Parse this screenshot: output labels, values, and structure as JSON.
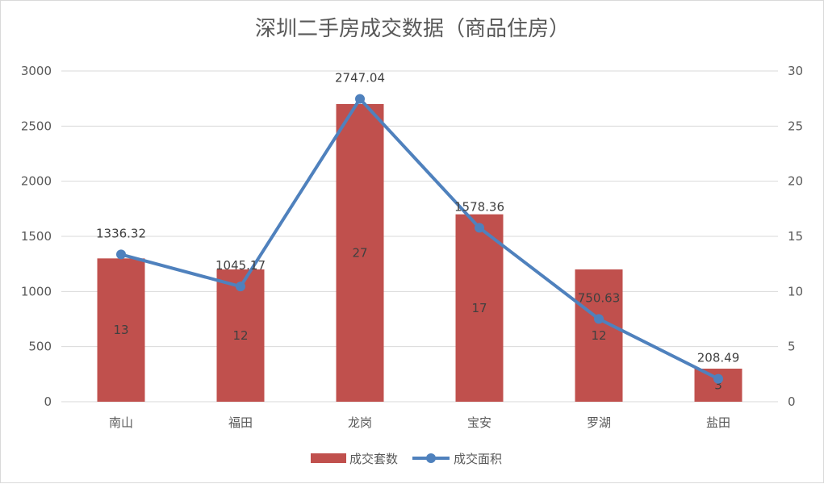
{
  "chart_data": {
    "type": "bar+line",
    "title": "深圳二手房成交数据（商品住房）",
    "categories": [
      "南山",
      "福田",
      "龙岗",
      "宝安",
      "罗湖",
      "盐田"
    ],
    "series": [
      {
        "name": "成交套数",
        "type": "bar",
        "axis": "left",
        "color": "#C0504D",
        "values": [
          1300,
          1200,
          2700,
          1700,
          1200,
          300
        ],
        "data_labels": [
          "13",
          "12",
          "27",
          "17",
          "12",
          "3"
        ]
      },
      {
        "name": "成交面积",
        "type": "line",
        "axis": "right",
        "color": "#4F81BD",
        "values": [
          13.36,
          10.45,
          27.47,
          15.78,
          7.51,
          2.08
        ],
        "data_labels": [
          "1336.32",
          "1045.17",
          "2747.04",
          "1578.36",
          "750.63",
          "208.49"
        ]
      }
    ],
    "y_left": {
      "min": 0,
      "max": 3000,
      "ticks": [
        "0",
        "500",
        "1000",
        "1500",
        "2000",
        "2500",
        "3000"
      ]
    },
    "y_right": {
      "min": 0,
      "max": 30,
      "ticks": [
        "0",
        "5",
        "10",
        "15",
        "20",
        "25",
        "30"
      ]
    },
    "grid": true,
    "legend_position": "bottom"
  }
}
